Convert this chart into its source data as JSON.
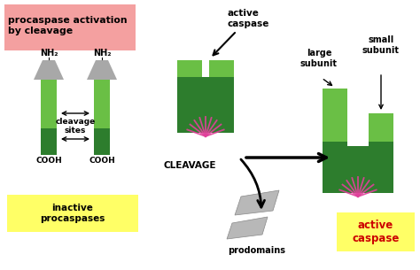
{
  "bg_color": "#ffffff",
  "light_green": "#6abf45",
  "dark_green": "#2d7d2d",
  "gray_cap": "#a8a8a8",
  "gray_tri": "#b0b0b0",
  "pink_bg": "#f4a0a0",
  "yellow_bg": "#ffff66",
  "magenta": "#e0409a",
  "red_text": "#cc0000",
  "title": "procaspase activation\nby cleavage",
  "label_inactive": "inactive\nprocaspases",
  "label_active_top": "active\ncaspase",
  "label_cleavage": "CLEAVAGE",
  "label_prodomains": "prodomains",
  "label_large": "large\nsubunit",
  "label_small": "small\nsubunit",
  "label_active_bottom": "active\ncaspase",
  "label_nh2": "NH₂",
  "label_cooh": "COOH",
  "label_cleavage_sites": "cleavage\nsites"
}
